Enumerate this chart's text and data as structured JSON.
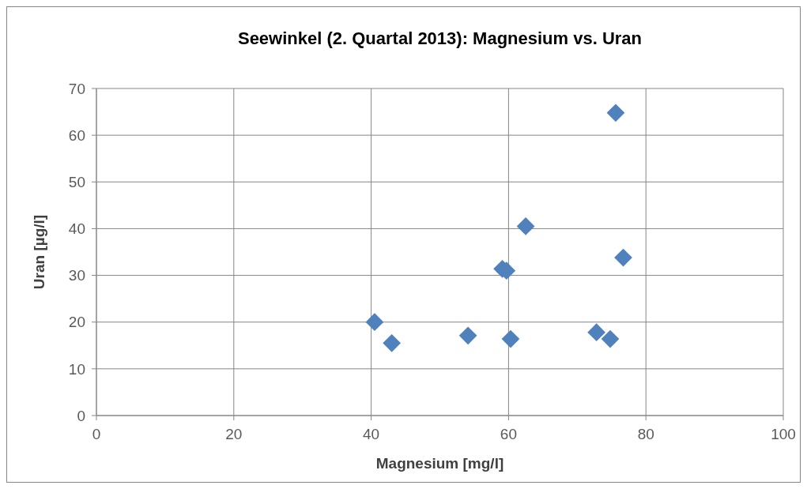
{
  "chart_data": {
    "type": "scatter",
    "title": "Seewinkel (2. Quartal 2013): Magnesium vs. Uran",
    "xlabel": "Magnesium [mg/l]",
    "ylabel": "Uran [µg/l]",
    "x": [
      40.5,
      43.0,
      54.1,
      59.1,
      59.7,
      60.3,
      62.5,
      72.8,
      74.8,
      75.6,
      76.7
    ],
    "series": [
      {
        "color": "#4f81bd",
        "values": [
          20.0,
          15.5,
          17.1,
          31.4,
          31.0,
          16.4,
          40.5,
          17.8,
          16.4,
          64.8,
          33.8
        ]
      }
    ],
    "xlim": [
      0,
      100
    ],
    "xticks": [
      0,
      20,
      40,
      60,
      80,
      100
    ],
    "ylim": [
      0,
      70
    ],
    "yticks": [
      0,
      10,
      20,
      30,
      40,
      50,
      60,
      70
    ],
    "grid": true,
    "marker": "diamond"
  }
}
